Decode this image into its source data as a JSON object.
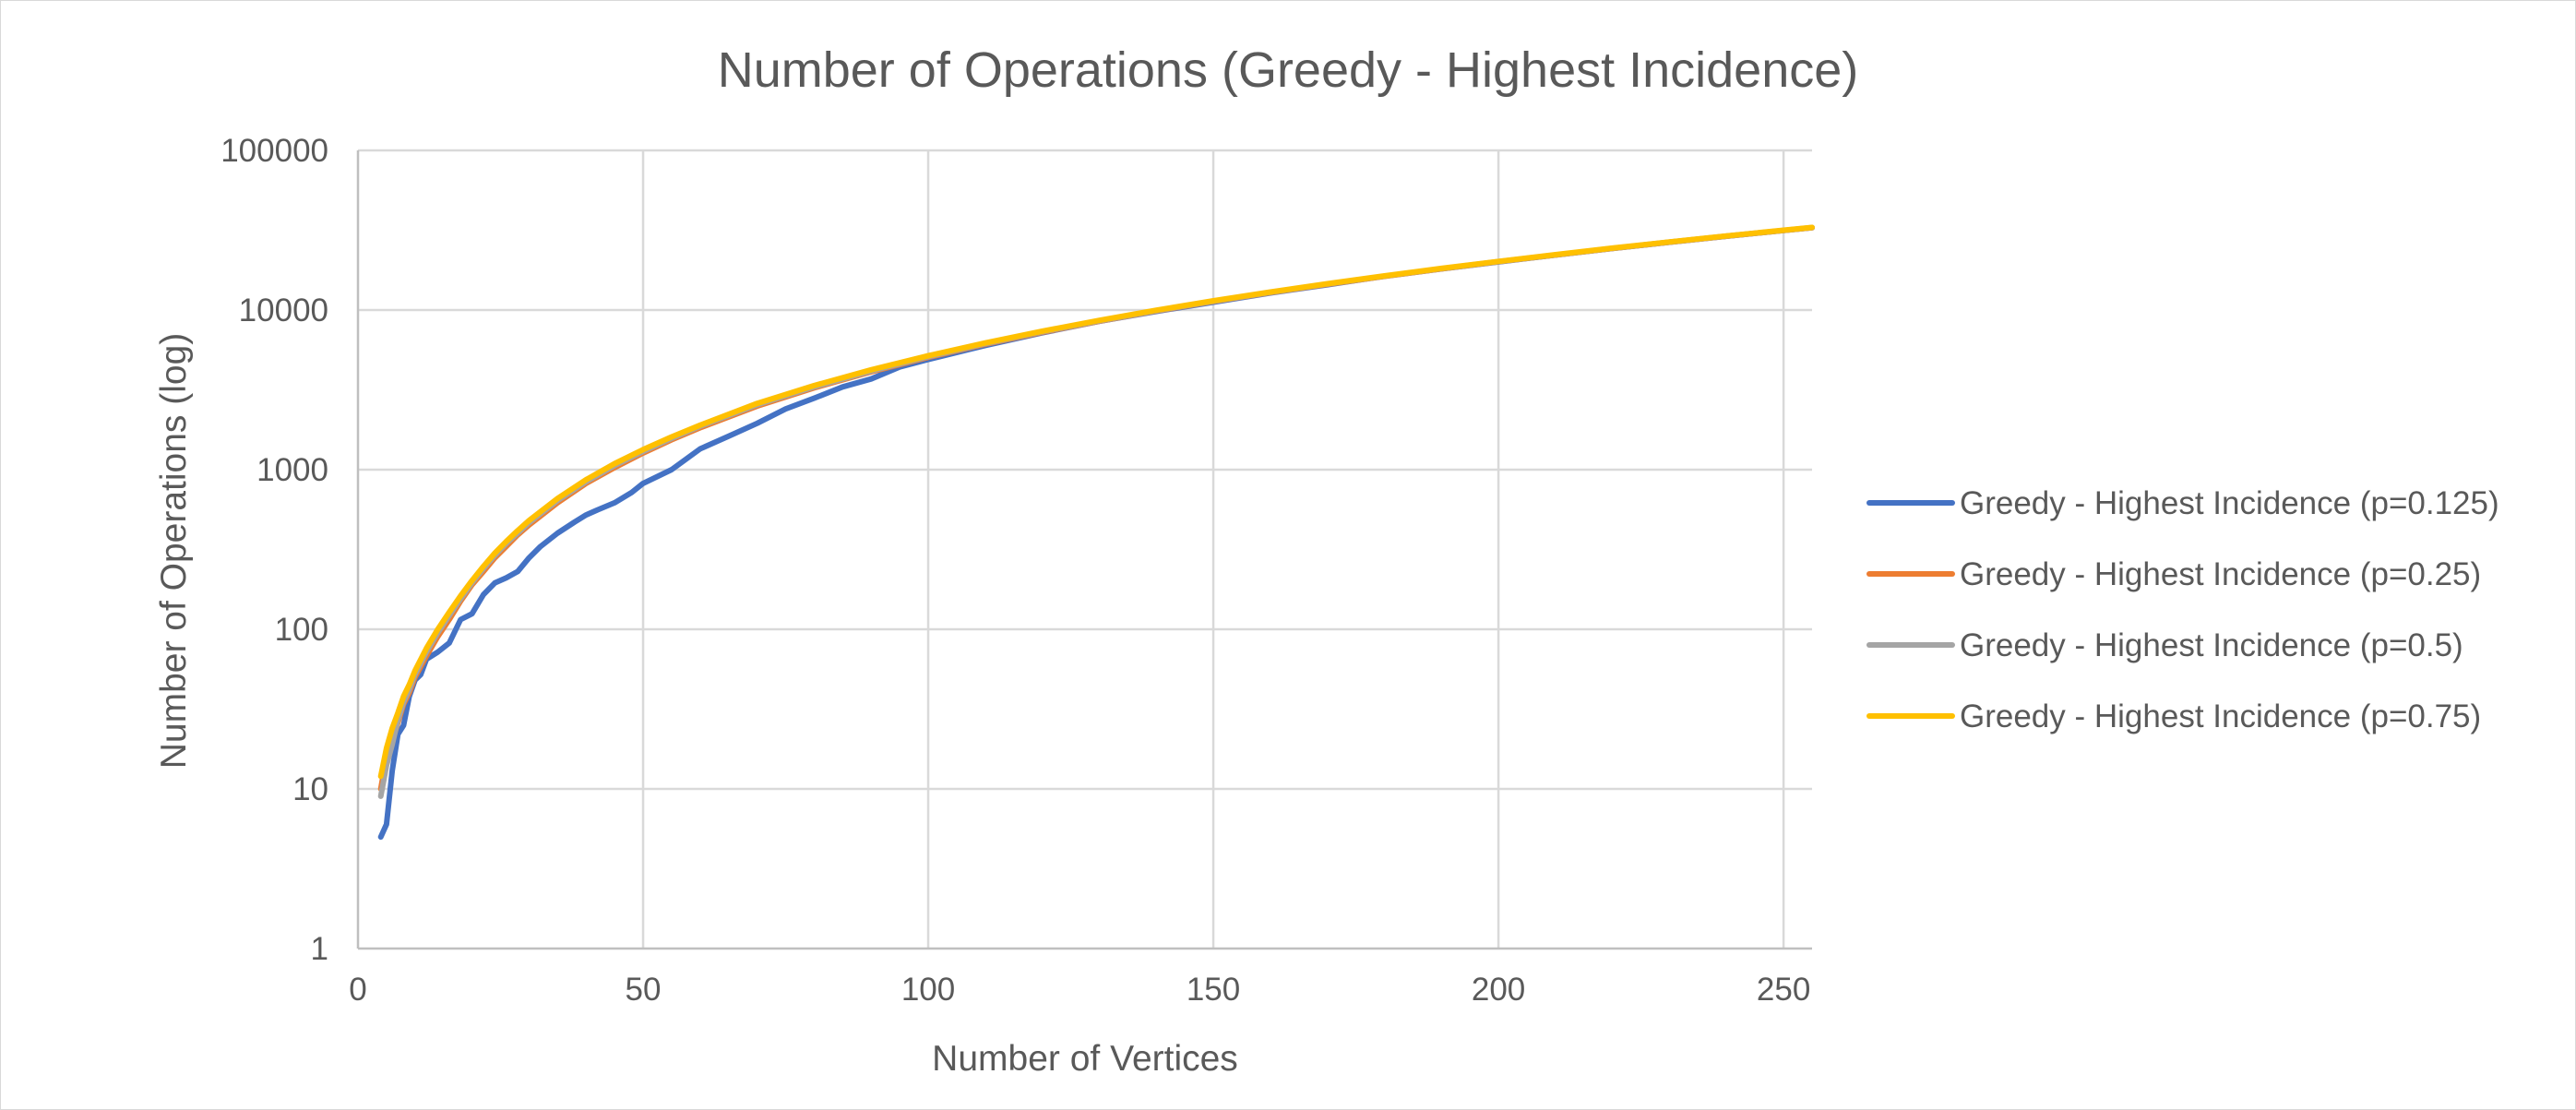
{
  "chart_data": {
    "type": "line",
    "title": "Number of Operations (Greedy - Highest Incidence)",
    "xlabel": "Number of Vertices",
    "ylabel": "Number of Operations (log)",
    "xlim": [
      0,
      255
    ],
    "ylim": [
      1,
      100000
    ],
    "yscale": "log",
    "grid": true,
    "legend_position": "right",
    "x_ticks": [
      "0",
      "50",
      "100",
      "150",
      "200",
      "250"
    ],
    "y_ticks": [
      "1",
      "10",
      "100",
      "1000",
      "10000",
      "100000"
    ],
    "series": [
      {
        "name": "Greedy - Highest Incidence (p=0.125)",
        "color": "#4472C4",
        "x": [
          4,
          5,
          6,
          7,
          8,
          9,
          10,
          11,
          12,
          14,
          16,
          18,
          20,
          22,
          24,
          26,
          28,
          30,
          32,
          35,
          38,
          40,
          42,
          45,
          48,
          50,
          55,
          60,
          65,
          70,
          75,
          80,
          85,
          90,
          95,
          100,
          110,
          120,
          130,
          140,
          150,
          160,
          170,
          180,
          190,
          200,
          210,
          220,
          230,
          240,
          250,
          255
        ],
        "y": [
          5,
          6,
          13,
          22,
          25,
          38,
          48,
          52,
          65,
          72,
          82,
          115,
          125,
          165,
          195,
          210,
          230,
          280,
          330,
          400,
          470,
          520,
          560,
          620,
          720,
          820,
          1000,
          1350,
          1620,
          1950,
          2400,
          2800,
          3300,
          3700,
          4400,
          4900,
          6000,
          7200,
          8500,
          9800,
          11200,
          12800,
          14400,
          16300,
          18100,
          20000,
          22100,
          24300,
          26600,
          29000,
          31500,
          32800
        ]
      },
      {
        "name": "Greedy - Highest Incidence (p=0.25)",
        "color": "#ED7D31",
        "x": [
          4,
          5,
          6,
          7,
          8,
          9,
          10,
          12,
          14,
          16,
          18,
          20,
          22,
          24,
          26,
          28,
          30,
          35,
          40,
          45,
          50,
          55,
          60,
          70,
          80,
          90,
          100,
          110,
          120,
          130,
          140,
          150,
          160,
          170,
          180,
          190,
          200,
          210,
          220,
          230,
          240,
          250,
          255
        ],
        "y": [
          10,
          16,
          20,
          26,
          34,
          40,
          50,
          68,
          90,
          115,
          150,
          190,
          230,
          280,
          330,
          390,
          450,
          620,
          820,
          1030,
          1270,
          1540,
          1830,
          2500,
          3250,
          4100,
          5050,
          6100,
          7250,
          8500,
          9850,
          11300,
          12850,
          14500,
          16250,
          18100,
          20050,
          22100,
          24300,
          26600,
          29000,
          31500,
          32800
        ]
      },
      {
        "name": "Greedy - Highest Incidence (p=0.5)",
        "color": "#A5A5A5",
        "x": [
          4,
          5,
          6,
          7,
          8,
          9,
          10,
          12,
          14,
          16,
          18,
          20,
          22,
          24,
          26,
          28,
          30,
          35,
          40,
          45,
          50,
          55,
          60,
          70,
          80,
          90,
          100,
          110,
          120,
          130,
          140,
          150,
          160,
          170,
          180,
          190,
          200,
          210,
          220,
          230,
          240,
          250,
          255
        ],
        "y": [
          9,
          14,
          19,
          27,
          35,
          42,
          52,
          72,
          95,
          122,
          155,
          195,
          240,
          290,
          345,
          400,
          465,
          640,
          840,
          1060,
          1300,
          1570,
          1870,
          2550,
          3300,
          4150,
          5100,
          6150,
          7300,
          8550,
          9900,
          11350,
          12900,
          14550,
          16300,
          18150,
          20100,
          22150,
          24350,
          26650,
          29050,
          31550,
          32850
        ]
      },
      {
        "name": "Greedy - Highest Incidence (p=0.75)",
        "color": "#FFC000",
        "x": [
          4,
          5,
          6,
          7,
          8,
          9,
          10,
          12,
          14,
          16,
          18,
          20,
          22,
          24,
          26,
          28,
          30,
          35,
          40,
          45,
          50,
          55,
          60,
          70,
          80,
          90,
          100,
          110,
          120,
          130,
          140,
          150,
          160,
          170,
          180,
          190,
          200,
          210,
          220,
          230,
          240,
          250,
          255
        ],
        "y": [
          12,
          18,
          24,
          30,
          38,
          45,
          55,
          76,
          100,
          128,
          162,
          202,
          248,
          300,
          355,
          415,
          480,
          660,
          865,
          1090,
          1335,
          1605,
          1900,
          2600,
          3360,
          4220,
          5170,
          6220,
          7370,
          8620,
          9970,
          11420,
          12970,
          14620,
          16370,
          18220,
          20170,
          22220,
          24420,
          26720,
          29120,
          31620,
          32900
        ]
      }
    ]
  }
}
